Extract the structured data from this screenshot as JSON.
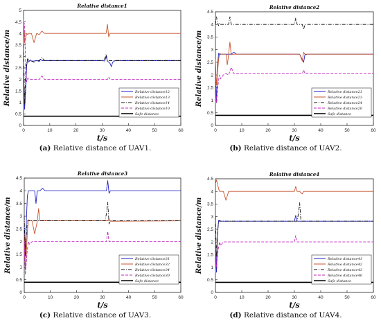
{
  "chart_data": [
    {
      "type": "line",
      "title": "Relative   distance1",
      "xlabel": "t/s",
      "ylabel": "Relative  distance/m",
      "xlim": [
        0,
        60
      ],
      "ylim": [
        0,
        5
      ],
      "xticks": [
        "0",
        "10",
        "20",
        "30",
        "40",
        "50",
        "60"
      ],
      "yticks": [
        "0",
        "0.5",
        "1",
        "1.5",
        "2",
        "2.5",
        "3",
        "3.5",
        "4",
        "4.5",
        "5"
      ],
      "grid": false,
      "legend_position": "bottom-right",
      "caption_tag": "(a)",
      "caption_text": " Relative distance of UAV1.",
      "series": [
        {
          "name": "Relative   distance12",
          "color": "#1f1fbf",
          "dash": "solid",
          "x": [
            0,
            0.4,
            0.8,
            1.2,
            1.6,
            2,
            2.5,
            3,
            4,
            5,
            6,
            6.5,
            7,
            8,
            30,
            31,
            31.5,
            32,
            33,
            33.5,
            34,
            35,
            60
          ],
          "y": [
            2.4,
            0.7,
            1.5,
            2.6,
            2.9,
            2.75,
            2.85,
            2.8,
            2.8,
            2.82,
            2.78,
            2.88,
            2.82,
            2.82,
            2.82,
            2.8,
            3.0,
            2.8,
            2.7,
            2.55,
            2.75,
            2.82,
            2.82
          ]
        },
        {
          "name": "Relative   distance13",
          "color": "#c8552c",
          "dash": "solid",
          "x": [
            0,
            0.4,
            0.8,
            1.2,
            1.6,
            2,
            3,
            4,
            5,
            6,
            7,
            8,
            30,
            31.5,
            32,
            32.5,
            33,
            34,
            60
          ],
          "y": [
            4.6,
            3.6,
            3.8,
            4.0,
            3.95,
            4.0,
            4.0,
            3.6,
            4.0,
            3.95,
            4.1,
            4.0,
            4.0,
            4.0,
            4.4,
            3.85,
            4.0,
            4.0,
            4.0
          ]
        },
        {
          "name": "Relative   distance14",
          "color": "#111111",
          "dash": "dashdot",
          "x": [
            0,
            0.4,
            0.8,
            1.2,
            1.6,
            2,
            3,
            4,
            5,
            6,
            7,
            8,
            30,
            31,
            31.5,
            32,
            33,
            60
          ],
          "y": [
            3.5,
            0.9,
            2.3,
            2.75,
            2.9,
            2.82,
            2.8,
            2.75,
            2.82,
            2.82,
            2.95,
            2.82,
            2.82,
            2.9,
            3.1,
            2.82,
            2.82,
            2.82
          ]
        },
        {
          "name": "Relative   distance10",
          "color": "#c026c0",
          "dash": "dashed",
          "x": [
            0,
            0.4,
            0.8,
            1.2,
            1.6,
            2,
            3,
            4,
            5,
            6,
            7,
            8,
            30,
            32,
            32.5,
            33,
            60
          ],
          "y": [
            4.5,
            4.4,
            2.6,
            1.9,
            2.05,
            2.0,
            2.0,
            2.0,
            2.0,
            2.0,
            2.15,
            2.0,
            2.0,
            2.0,
            2.1,
            2.0,
            2.0
          ]
        },
        {
          "name": "Safe   distance",
          "color": "#000000",
          "dash": "solid",
          "bold": true,
          "x": [
            0,
            60
          ],
          "y": [
            0.4,
            0.4
          ]
        }
      ]
    },
    {
      "type": "line",
      "title": "Relative   distance2",
      "xlabel": "t/s",
      "ylabel": "Relative  distance/m",
      "xlim": [
        0,
        60
      ],
      "ylim": [
        0,
        4.5
      ],
      "xticks": [
        "0",
        "10",
        "20",
        "30",
        "40",
        "50",
        "60"
      ],
      "yticks": [
        "0",
        "0.5",
        "1",
        "1.5",
        "2",
        "2.5",
        "3",
        "3.5",
        "4",
        "4.5"
      ],
      "grid": false,
      "legend_position": "bottom-right",
      "caption_tag": "(b)",
      "caption_text": " Relative distance of UAV2.",
      "series": [
        {
          "name": "Relative   distance21",
          "color": "#1f1fbf",
          "dash": "solid",
          "x": [
            0,
            0.4,
            0.8,
            1.2,
            1.6,
            2,
            3,
            4,
            5,
            6,
            7,
            8,
            30,
            31,
            32,
            33,
            33.5,
            34,
            35,
            60
          ],
          "y": [
            2.0,
            0.9,
            2.4,
            2.85,
            2.8,
            2.82,
            2.82,
            2.82,
            2.82,
            2.82,
            2.9,
            2.82,
            2.82,
            2.82,
            2.82,
            2.6,
            2.5,
            2.8,
            2.82,
            2.82
          ]
        },
        {
          "name": "Relative   distance23",
          "color": "#c8552c",
          "dash": "solid",
          "x": [
            0,
            0.4,
            0.8,
            1.2,
            1.6,
            2,
            3,
            4,
            4.5,
            5,
            5.5,
            6,
            7,
            8,
            30,
            32,
            33,
            33.5,
            34,
            60
          ],
          "y": [
            2.6,
            1.6,
            2.1,
            2.6,
            2.85,
            2.82,
            2.82,
            2.82,
            2.4,
            2.8,
            3.3,
            2.8,
            2.82,
            2.82,
            2.82,
            2.82,
            2.55,
            2.9,
            2.82,
            2.82
          ]
        },
        {
          "name": "Relative   distance24",
          "color": "#111111",
          "dash": "dashdot",
          "x": [
            0,
            0.4,
            0.8,
            1.2,
            1.6,
            2,
            3,
            4,
            5,
            5.5,
            6,
            7,
            8,
            30,
            30.5,
            31,
            32,
            33,
            33.5,
            34,
            60
          ],
          "y": [
            4.0,
            4.3,
            4.1,
            3.95,
            4.05,
            4.0,
            4.0,
            4.0,
            4.0,
            4.3,
            4.0,
            4.0,
            4.0,
            4.0,
            4.25,
            4.0,
            4.0,
            4.0,
            3.8,
            4.0,
            4.0
          ]
        },
        {
          "name": "Relative   distance20",
          "color": "#c026c0",
          "dash": "dashed",
          "x": [
            0,
            0.4,
            0.8,
            1.2,
            1.6,
            2,
            3,
            4,
            5,
            6,
            7,
            8,
            30,
            32,
            33,
            33.5,
            34,
            60
          ],
          "y": [
            2.0,
            0.9,
            1.4,
            1.8,
            2.0,
            1.85,
            2.0,
            2.05,
            2.0,
            2.3,
            2.05,
            2.05,
            2.05,
            2.05,
            2.05,
            2.2,
            2.05,
            2.05
          ]
        },
        {
          "name": "Safe   distance",
          "color": "#000000",
          "dash": "solid",
          "bold": true,
          "x": [
            0,
            60
          ],
          "y": [
            0.4,
            0.4
          ]
        }
      ]
    },
    {
      "type": "line",
      "title": "Relative   distance3",
      "xlabel": "t/s",
      "ylabel": "Relative  distance/m",
      "xlim": [
        0,
        60
      ],
      "ylim": [
        0,
        4.5
      ],
      "xticks": [
        "0",
        "10",
        "20",
        "30",
        "40",
        "50",
        "60"
      ],
      "yticks": [
        "0",
        "0.5",
        "1",
        "1.5",
        "2",
        "2.5",
        "3",
        "3.5",
        "4",
        "4.5"
      ],
      "grid": false,
      "legend_position": "bottom-right",
      "caption_tag": "(c)",
      "caption_text": " Relative distance of UAV3.",
      "series": [
        {
          "name": "Relative   distance31",
          "color": "#1f1fbf",
          "dash": "solid",
          "x": [
            0,
            0.4,
            0.8,
            1.2,
            1.6,
            2,
            3,
            4,
            4.5,
            5,
            6,
            7,
            8,
            30,
            31.5,
            32,
            32.5,
            33,
            60
          ],
          "y": [
            2.6,
            1.5,
            2.8,
            3.8,
            4.0,
            4.0,
            4.0,
            4.0,
            3.5,
            4.0,
            4.0,
            4.1,
            4.0,
            4.0,
            4.0,
            4.4,
            3.9,
            4.0,
            4.0
          ]
        },
        {
          "name": "Relative   distance32",
          "color": "#c8552c",
          "dash": "solid",
          "x": [
            0,
            0.4,
            0.8,
            1.2,
            1.6,
            2,
            3,
            4,
            5,
            5.5,
            6,
            7,
            8,
            31,
            32,
            32.5,
            33,
            60
          ],
          "y": [
            2.3,
            0.9,
            1.5,
            2.4,
            2.85,
            2.82,
            2.82,
            2.3,
            2.8,
            3.3,
            2.82,
            2.82,
            2.82,
            2.82,
            2.82,
            2.9,
            2.8,
            2.82
          ]
        },
        {
          "name": "Relative   distance34",
          "color": "#111111",
          "dash": "dashdot",
          "x": [
            0,
            0.4,
            0.8,
            1.2,
            1.6,
            2,
            3,
            4,
            5,
            6,
            7,
            8,
            30,
            31,
            31.5,
            32,
            32.5,
            33,
            60
          ],
          "y": [
            3.0,
            1.4,
            2.3,
            2.8,
            2.85,
            2.82,
            2.82,
            2.82,
            2.82,
            2.82,
            2.82,
            2.82,
            2.82,
            2.82,
            3.1,
            3.55,
            2.7,
            2.82,
            2.82
          ]
        },
        {
          "name": "Relative   distance30",
          "color": "#c026c0",
          "dash": "dashed",
          "x": [
            0,
            0.4,
            0.8,
            1.2,
            1.6,
            2,
            3,
            4,
            5,
            6,
            8,
            30,
            31.5,
            32,
            32.5,
            33,
            60
          ],
          "y": [
            2.0,
            0.7,
            1.2,
            1.7,
            2.0,
            1.9,
            2.0,
            2.0,
            2.0,
            2.0,
            2.0,
            2.0,
            2.0,
            2.4,
            2.0,
            2.0,
            2.0
          ]
        },
        {
          "name": "Safe   distance",
          "color": "#000000",
          "dash": "solid",
          "bold": true,
          "x": [
            0,
            60
          ],
          "y": [
            0.4,
            0.4
          ]
        }
      ]
    },
    {
      "type": "line",
      "title": "Relative   distance4",
      "xlabel": "t/s",
      "ylabel": "Relative  distance/m",
      "xlim": [
        0,
        60
      ],
      "ylim": [
        0,
        4.5
      ],
      "xticks": [
        "0",
        "10",
        "20",
        "30",
        "40",
        "50",
        "60"
      ],
      "yticks": [
        "0",
        "0.5",
        "1",
        "1.5",
        "2",
        "2.5",
        "3",
        "3.5",
        "4",
        "4.5"
      ],
      "grid": false,
      "legend_position": "bottom-right",
      "caption_tag": "(d)",
      "caption_text": " Relative distance of UAV4.",
      "series": [
        {
          "name": "Relative   distance41",
          "color": "#1f1fbf",
          "dash": "solid",
          "x": [
            0,
            0.4,
            0.8,
            1.2,
            1.6,
            2,
            3,
            4,
            5,
            6,
            7,
            8,
            30,
            30.5,
            31,
            32,
            60
          ],
          "y": [
            2.3,
            0.8,
            2.3,
            2.85,
            2.82,
            2.82,
            2.82,
            2.82,
            2.82,
            2.82,
            2.82,
            2.82,
            2.82,
            3.05,
            2.82,
            2.82,
            2.82
          ]
        },
        {
          "name": "Relative   distance42",
          "color": "#c8552c",
          "dash": "solid",
          "x": [
            0,
            0.4,
            0.8,
            1.2,
            1.6,
            2,
            3,
            4,
            5,
            6,
            7,
            8,
            30,
            30.5,
            31,
            32,
            33,
            33.5,
            34,
            60
          ],
          "y": [
            4.3,
            4.45,
            4.3,
            4.1,
            4.0,
            4.0,
            4.0,
            3.65,
            4.0,
            4.0,
            4.0,
            4.0,
            4.0,
            4.2,
            4.0,
            4.0,
            3.9,
            4.0,
            4.0,
            4.0
          ]
        },
        {
          "name": "Relative   distance43",
          "color": "#111111",
          "dash": "dashdot",
          "x": [
            0,
            0.4,
            0.8,
            1.2,
            1.6,
            2,
            3,
            4,
            5,
            6,
            7,
            8,
            30,
            31,
            31.5,
            32,
            32.5,
            33,
            60
          ],
          "y": [
            3.0,
            1.4,
            2.4,
            2.8,
            2.85,
            2.82,
            2.82,
            2.82,
            2.82,
            2.82,
            2.82,
            2.82,
            2.82,
            2.82,
            3.1,
            3.55,
            2.8,
            2.82,
            2.82
          ]
        },
        {
          "name": "Relative   distance40",
          "color": "#c026c0",
          "dash": "dashed",
          "x": [
            0,
            0.4,
            0.8,
            1.2,
            1.6,
            2,
            3,
            4,
            5,
            6,
            8,
            30,
            30.5,
            31,
            32,
            60
          ],
          "y": [
            2.1,
            1.0,
            1.5,
            1.8,
            2.0,
            1.85,
            2.0,
            2.0,
            2.0,
            2.0,
            2.0,
            2.0,
            2.25,
            2.0,
            2.0,
            2.0
          ]
        },
        {
          "name": "Safe   distance",
          "color": "#000000",
          "dash": "solid",
          "bold": true,
          "x": [
            0,
            60
          ],
          "y": [
            0.4,
            0.4
          ]
        }
      ]
    }
  ]
}
